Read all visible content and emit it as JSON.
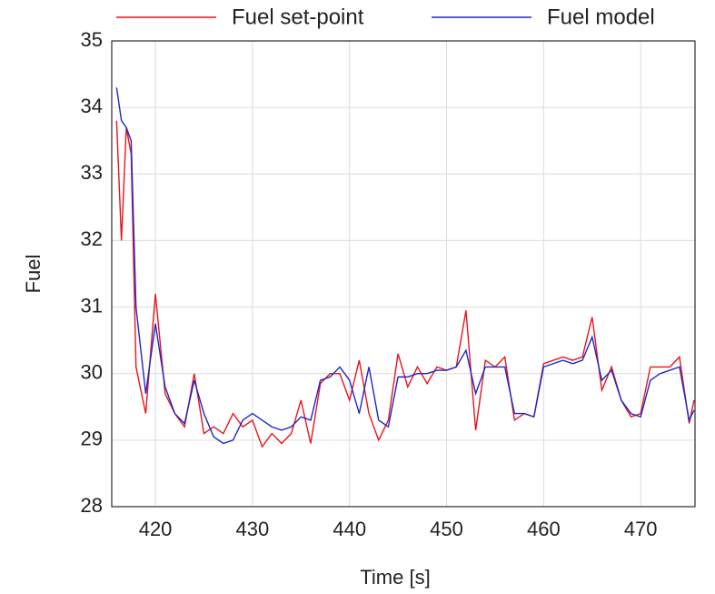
{
  "chart_data": {
    "type": "line",
    "xlabel": "Time [s]",
    "ylabel": "Fuel",
    "x": [
      416,
      416.5,
      417,
      417.5,
      418,
      419,
      420,
      421,
      422,
      423,
      424,
      425,
      426,
      427,
      428,
      429,
      430,
      431,
      432,
      433,
      434,
      435,
      436,
      437,
      438,
      439,
      440,
      441,
      442,
      443,
      444,
      445,
      446,
      447,
      448,
      449,
      450,
      451,
      452,
      453,
      454,
      455,
      456,
      457,
      458,
      459,
      460,
      461,
      462,
      463,
      464,
      465,
      466,
      467,
      468,
      469,
      470,
      471,
      472,
      473,
      474,
      475,
      475.5
    ],
    "series": [
      {
        "name": "Fuel set-point",
        "color": "#e8141c",
        "values": [
          33.8,
          32.0,
          33.7,
          33.3,
          30.1,
          29.4,
          31.2,
          29.7,
          29.4,
          29.2,
          30.0,
          29.1,
          29.2,
          29.1,
          29.4,
          29.2,
          29.3,
          28.9,
          29.1,
          28.95,
          29.1,
          29.6,
          28.95,
          29.85,
          30.0,
          30.0,
          29.6,
          30.2,
          29.4,
          29.0,
          29.3,
          30.3,
          29.8,
          30.1,
          29.85,
          30.1,
          30.05,
          30.1,
          30.95,
          29.15,
          30.2,
          30.1,
          30.25,
          29.3,
          29.4,
          29.35,
          30.15,
          30.2,
          30.25,
          30.2,
          30.25,
          30.85,
          29.75,
          30.1,
          29.6,
          29.35,
          29.4,
          30.1,
          30.1,
          30.1,
          30.25,
          29.25,
          29.6
        ]
      },
      {
        "name": "Fuel model",
        "color": "#1c28c8",
        "values": [
          34.3,
          33.8,
          33.7,
          33.5,
          31.0,
          29.7,
          30.75,
          29.8,
          29.4,
          29.25,
          29.9,
          29.4,
          29.05,
          28.95,
          29.0,
          29.3,
          29.4,
          29.3,
          29.2,
          29.15,
          29.2,
          29.35,
          29.3,
          29.9,
          29.95,
          30.1,
          29.9,
          29.4,
          30.1,
          29.3,
          29.2,
          29.95,
          29.95,
          30.0,
          30.0,
          30.05,
          30.05,
          30.1,
          30.35,
          29.7,
          30.1,
          30.1,
          30.1,
          29.4,
          29.4,
          29.35,
          30.1,
          30.15,
          30.2,
          30.15,
          30.2,
          30.55,
          29.9,
          30.05,
          29.6,
          29.4,
          29.35,
          29.9,
          30.0,
          30.05,
          30.1,
          29.3,
          29.45
        ]
      }
    ],
    "xlim": [
      415.5,
      475.6
    ],
    "xticks": [
      420,
      430,
      440,
      450,
      460,
      470
    ],
    "ylim": [
      28,
      35
    ],
    "yticks": [
      28,
      29,
      30,
      31,
      32,
      33,
      34,
      35
    ],
    "grid": true
  }
}
